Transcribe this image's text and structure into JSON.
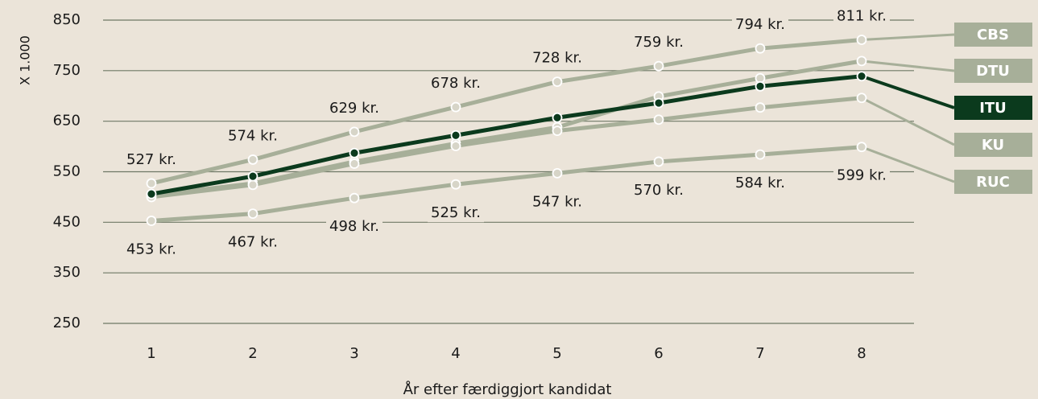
{
  "chart_data": {
    "type": "line",
    "x_label": "År efter færdiggjort kandidat",
    "y_label": "X 1.000",
    "categories": [
      "1",
      "2",
      "3",
      "4",
      "5",
      "6",
      "7",
      "8"
    ],
    "ylim": [
      250,
      850
    ],
    "yticks": [
      250,
      350,
      450,
      550,
      650,
      750,
      850
    ],
    "grid": true,
    "series": [
      {
        "name": "CBS",
        "color": "#a7af99",
        "values": [
          527,
          574,
          629,
          678,
          728,
          759,
          794,
          811
        ],
        "value_labels": [
          "527 kr.",
          "574 kr.",
          "629 kr.",
          "678 kr.",
          "728 kr.",
          "759 kr.",
          "794 kr.",
          "811 kr."
        ]
      },
      {
        "name": "DTU",
        "color": "#a7af99",
        "values": [
          503,
          527,
          570,
          606,
          638,
          699,
          735,
          769
        ]
      },
      {
        "name": "ITU",
        "color": "#0b3a1d",
        "values": [
          506,
          541,
          587,
          622,
          657,
          686,
          719,
          739
        ]
      },
      {
        "name": "KU",
        "color": "#a7af99",
        "values": [
          500,
          524,
          566,
          601,
          631,
          653,
          677,
          696
        ]
      },
      {
        "name": "RUC",
        "color": "#a7af99",
        "values": [
          453,
          467,
          498,
          525,
          547,
          570,
          584,
          599
        ],
        "value_labels": [
          "453 kr.",
          "467 kr.",
          "498 kr.",
          "525 kr.",
          "547 kr.",
          "570 kr.",
          "584 kr.",
          "599 kr."
        ]
      }
    ]
  }
}
